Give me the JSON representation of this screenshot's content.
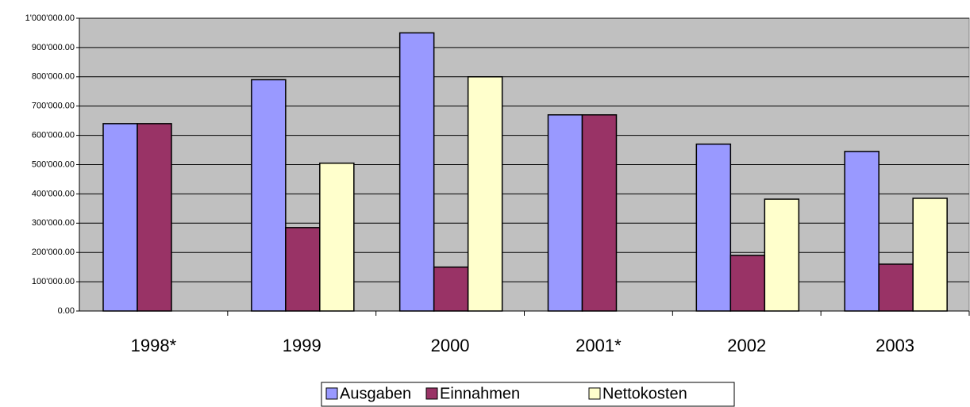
{
  "chart_data": {
    "type": "bar",
    "categories": [
      "1998*",
      "1999",
      "2000",
      "2001*",
      "2002",
      "2003"
    ],
    "series": [
      {
        "name": "Ausgaben",
        "color": "#9999ff",
        "values": [
          640000,
          790000,
          950000,
          670000,
          570000,
          545000
        ]
      },
      {
        "name": "Einnahmen",
        "color": "#993366",
        "values": [
          640000,
          285000,
          150000,
          670000,
          190000,
          160000
        ]
      },
      {
        "name": "Nettokosten",
        "color": "#ffffcc",
        "values": [
          null,
          505000,
          800000,
          null,
          382000,
          385000
        ]
      }
    ],
    "ylim": [
      0,
      1000000
    ],
    "yticks": [
      {
        "value": 0,
        "label": "0.00"
      },
      {
        "value": 100000,
        "label": "100'000.00"
      },
      {
        "value": 200000,
        "label": "200'000.00"
      },
      {
        "value": 300000,
        "label": "300'000.00"
      },
      {
        "value": 400000,
        "label": "400'000.00"
      },
      {
        "value": 500000,
        "label": "500'000.00"
      },
      {
        "value": 600000,
        "label": "600'000.00"
      },
      {
        "value": 700000,
        "label": "700'000.00"
      },
      {
        "value": 800000,
        "label": "800'000.00"
      },
      {
        "value": 900000,
        "label": "900'000.00"
      },
      {
        "value": 1000000,
        "label": "1'000'000.00"
      }
    ],
    "grid": true,
    "legend": "bottom"
  }
}
